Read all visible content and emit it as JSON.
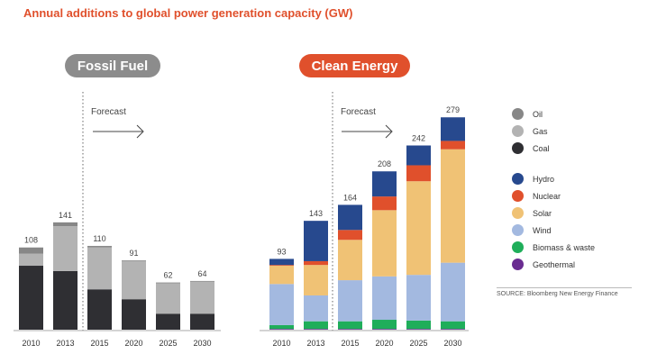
{
  "chart_data": {
    "title": "Annual additions to global power generation capacity (GW)",
    "type": "bar",
    "stacked": true,
    "panels": [
      {
        "label": "Fossil Fuel",
        "forecast_label": "Forecast",
        "categories": [
          "2010",
          "2013",
          "2015",
          "2020",
          "2025",
          "2030"
        ],
        "totals": [
          108,
          141,
          110,
          91,
          62,
          64
        ],
        "series": [
          {
            "name": "Coal",
            "color": "#2f2f33",
            "values": [
              84,
              77,
              53,
              40,
              21,
              21
            ]
          },
          {
            "name": "Gas",
            "color": "#b3b3b3",
            "values": [
              16,
              59,
              55,
              50,
              40,
              42
            ]
          },
          {
            "name": "Oil",
            "color": "#878787",
            "values": [
              8,
              5,
              2,
              1,
              1,
              1
            ]
          }
        ]
      },
      {
        "label": "Clean Energy",
        "forecast_label": "Forecast",
        "categories": [
          "2010",
          "2013",
          "2015",
          "2020",
          "2025",
          "2030"
        ],
        "totals": [
          93,
          143,
          164,
          208,
          242,
          279
        ],
        "series": [
          {
            "name": "Geothermal",
            "color": "#6a2c91",
            "values": [
              1,
              1,
              1,
              1,
              1,
              1
            ]
          },
          {
            "name": "Biomass & waste",
            "color": "#1fae5a",
            "values": [
              5,
              10,
              10,
              12,
              11,
              10
            ]
          },
          {
            "name": "Wind",
            "color": "#a3b9e0",
            "values": [
              54,
              34,
              54,
              57,
              60,
              77
            ]
          },
          {
            "name": "Solar",
            "color": "#f0c275",
            "values": [
              24,
              40,
              53,
              87,
              123,
              149
            ]
          },
          {
            "name": "Nuclear",
            "color": "#e0502c",
            "values": [
              1,
              5,
              13,
              18,
              21,
              11
            ]
          },
          {
            "name": "Hydro",
            "color": "#27498e",
            "values": [
              8,
              53,
              33,
              33,
              26,
              31
            ]
          }
        ]
      }
    ],
    "legend": [
      {
        "name": "Oil",
        "color": "#878787"
      },
      {
        "name": "Gas",
        "color": "#b3b3b3"
      },
      {
        "name": "Coal",
        "color": "#2f2f33"
      },
      {
        "name": "Hydro",
        "color": "#27498e"
      },
      {
        "name": "Nuclear",
        "color": "#e0502c"
      },
      {
        "name": "Solar",
        "color": "#f0c275"
      },
      {
        "name": "Wind",
        "color": "#a3b9e0"
      },
      {
        "name": "Biomass & waste",
        "color": "#1fae5a"
      },
      {
        "name": "Geothermal",
        "color": "#6a2c91"
      }
    ],
    "ylim": [
      0,
      300
    ],
    "legend_position": "right"
  },
  "source": "SOURCE:  Bloomberg New Energy Finance"
}
